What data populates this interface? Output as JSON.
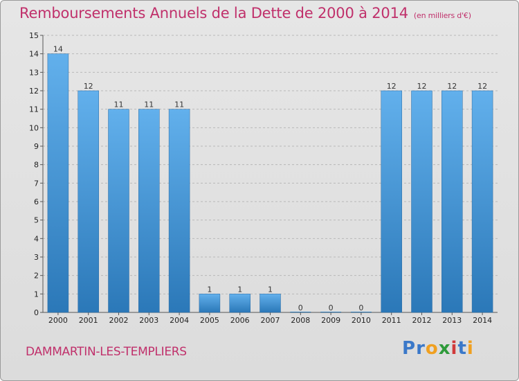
{
  "title": "Remboursements Annuels de la Dette de 2000 à 2014",
  "unit_label": "(en milliers d'€)",
  "place_name": "DAMMARTIN-LES-TEMPLIERS",
  "logo": {
    "letters": [
      {
        "char": "P",
        "color": "#3a78c9"
      },
      {
        "char": "r",
        "color": "#3a78c9"
      },
      {
        "char": "o",
        "color": "#f0a020"
      },
      {
        "char": "x",
        "color": "#2e9a3a"
      },
      {
        "char": "i",
        "color": "#d03a3a"
      },
      {
        "char": "t",
        "color": "#3a78c9"
      },
      {
        "char": "i",
        "color": "#f0a020"
      }
    ]
  },
  "colors": {
    "title": "#c0306b",
    "bar_light": "#62b0ec",
    "bar_dark": "#2b78b8",
    "grid": "#b8b8b8"
  },
  "chart_data": {
    "type": "bar",
    "title": "Remboursements Annuels de la Dette de 2000 à 2014",
    "xlabel": "",
    "ylabel": "",
    "categories": [
      "2000",
      "2001",
      "2002",
      "2003",
      "2004",
      "2005",
      "2006",
      "2007",
      "2008",
      "2009",
      "2010",
      "2011",
      "2012",
      "2013",
      "2014"
    ],
    "values": [
      14,
      12,
      11,
      11,
      11,
      1,
      1,
      1,
      0,
      0,
      0,
      12,
      12,
      12,
      12
    ],
    "ylim": [
      0,
      15
    ],
    "yticks": [
      0,
      1,
      2,
      3,
      4,
      5,
      6,
      7,
      8,
      9,
      10,
      11,
      12,
      13,
      14,
      15
    ],
    "grid": true,
    "legend": "none"
  }
}
